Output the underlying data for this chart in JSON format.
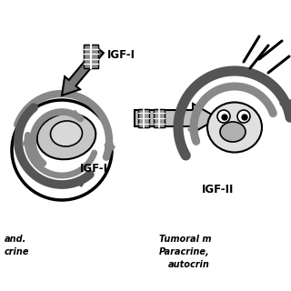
{
  "bg_color": "#ffffff",
  "igf1_label_top": "IGF-I",
  "igf1_label_bottom": "IGF-I",
  "igf2_label": "IGF-II",
  "left_bottom_text1": "and.",
  "left_bottom_text2": "crine",
  "right_bottom_text1": "Tumoral m",
  "right_bottom_text2": "Paracrine,",
  "right_bottom_text3": "autocrin",
  "gray_dark": "#555555",
  "gray_med": "#888888",
  "gray_light": "#bbbbbb",
  "gray_arrow": "#aaaaaa",
  "black": "#000000"
}
